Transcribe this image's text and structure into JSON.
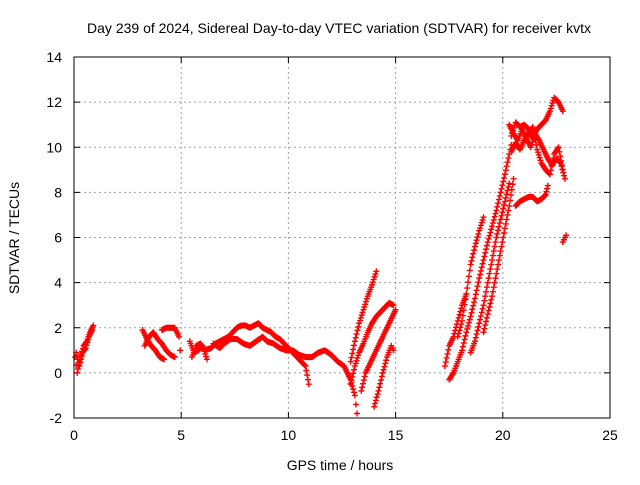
{
  "chart_data": {
    "type": "scatter",
    "title": "Day 239 of 2024, Sidereal Day-to-day VTEC variation (SDTVAR) for receiver kvtx",
    "xlabel": "GPS time / hours",
    "ylabel": "SDTVAR / TECUs",
    "xlim": [
      0,
      25
    ],
    "ylim": [
      -2,
      14
    ],
    "xticks": [
      0,
      5,
      10,
      15,
      20,
      25
    ],
    "yticks": [
      -2,
      0,
      2,
      4,
      6,
      8,
      10,
      12,
      14
    ],
    "grid": true,
    "marker_color": "#ff0000",
    "marker": "plus",
    "series": [
      {
        "segments": [
          [
            [
              0.05,
              0.7
            ],
            [
              0.15,
              0.0
            ],
            [
              0.3,
              0.7
            ],
            [
              0.45,
              1.2
            ],
            [
              0.6,
              1.4
            ],
            [
              0.75,
              1.8
            ],
            [
              0.9,
              2.1
            ]
          ],
          [
            [
              0.1,
              0.9
            ],
            [
              0.25,
              0.3
            ],
            [
              0.4,
              0.9
            ],
            [
              0.55,
              1.1
            ],
            [
              0.7,
              1.6
            ],
            [
              0.85,
              1.9
            ]
          ],
          [
            [
              3.2,
              1.9
            ],
            [
              3.4,
              1.5
            ],
            [
              3.6,
              1.2
            ],
            [
              3.8,
              1.0
            ],
            [
              4.0,
              0.7
            ],
            [
              4.2,
              0.6
            ]
          ],
          [
            [
              3.3,
              1.2
            ],
            [
              3.5,
              1.6
            ],
            [
              3.7,
              1.8
            ],
            [
              3.9,
              1.5
            ],
            [
              4.1,
              1.3
            ],
            [
              4.3,
              1.0
            ],
            [
              4.5,
              0.8
            ],
            [
              4.7,
              0.7
            ]
          ],
          [
            [
              4.1,
              1.9
            ],
            [
              4.3,
              2.0
            ],
            [
              4.5,
              2.0
            ],
            [
              4.7,
              2.0
            ],
            [
              4.9,
              1.6
            ],
            [
              4.95,
              1.0
            ]
          ],
          [
            [
              5.4,
              1.4
            ],
            [
              5.6,
              0.9
            ],
            [
              5.8,
              1.0
            ],
            [
              6.0,
              1.2
            ],
            [
              6.2,
              0.6
            ]
          ],
          [
            [
              5.5,
              0.7
            ],
            [
              5.7,
              1.2
            ],
            [
              5.9,
              1.3
            ],
            [
              6.1,
              1.0
            ],
            [
              6.4,
              1.1
            ],
            [
              6.6,
              1.3
            ],
            [
              6.8,
              1.4
            ],
            [
              7.0,
              1.5
            ],
            [
              7.2,
              1.6
            ],
            [
              7.4,
              1.8
            ],
            [
              7.6,
              2.0
            ],
            [
              7.8,
              2.1
            ],
            [
              8.0,
              2.1
            ],
            [
              8.2,
              2.0
            ],
            [
              8.4,
              2.1
            ],
            [
              8.6,
              2.2
            ],
            [
              8.8,
              2.0
            ],
            [
              9.0,
              1.9
            ],
            [
              9.2,
              1.8
            ],
            [
              9.4,
              1.6
            ],
            [
              9.6,
              1.5
            ],
            [
              9.8,
              1.3
            ],
            [
              10.0,
              1.1
            ],
            [
              10.2,
              0.9
            ],
            [
              10.4,
              0.7
            ],
            [
              10.6,
              0.5
            ],
            [
              10.8,
              0.3
            ],
            [
              10.95,
              -0.5
            ]
          ],
          [
            [
              6.5,
              1.3
            ],
            [
              6.8,
              1.1
            ],
            [
              7.0,
              1.3
            ],
            [
              7.3,
              1.5
            ],
            [
              7.6,
              1.5
            ],
            [
              7.9,
              1.3
            ],
            [
              8.2,
              1.2
            ],
            [
              8.5,
              1.4
            ],
            [
              8.8,
              1.6
            ],
            [
              9.0,
              1.4
            ],
            [
              9.3,
              1.3
            ],
            [
              9.6,
              1.1
            ],
            [
              9.9,
              1.0
            ],
            [
              10.2,
              1.0
            ],
            [
              10.5,
              0.8
            ],
            [
              10.8,
              0.7
            ],
            [
              11.1,
              0.7
            ],
            [
              11.4,
              0.9
            ],
            [
              11.7,
              1.0
            ],
            [
              12.0,
              0.8
            ],
            [
              12.3,
              0.5
            ],
            [
              12.6,
              0.3
            ],
            [
              12.9,
              -0.3
            ],
            [
              13.1,
              -1.0
            ],
            [
              13.2,
              -1.8
            ]
          ],
          [
            [
              12.9,
              0.5
            ],
            [
              13.1,
              1.4
            ],
            [
              13.3,
              2.2
            ],
            [
              13.5,
              2.8
            ],
            [
              13.7,
              3.4
            ],
            [
              13.9,
              3.9
            ],
            [
              14.1,
              4.5
            ]
          ],
          [
            [
              12.9,
              -0.5
            ],
            [
              13.1,
              0.3
            ],
            [
              13.3,
              0.9
            ],
            [
              13.5,
              1.3
            ],
            [
              13.7,
              1.8
            ],
            [
              13.9,
              2.2
            ],
            [
              14.1,
              2.5
            ],
            [
              14.3,
              2.7
            ],
            [
              14.5,
              2.9
            ],
            [
              14.7,
              3.1
            ],
            [
              14.9,
              3.0
            ]
          ],
          [
            [
              13.4,
              -0.8
            ],
            [
              13.6,
              0.0
            ],
            [
              13.8,
              0.4
            ],
            [
              14.0,
              0.8
            ],
            [
              14.2,
              1.2
            ],
            [
              14.4,
              1.6
            ],
            [
              14.6,
              2.0
            ],
            [
              14.8,
              2.4
            ],
            [
              15.0,
              2.8
            ]
          ],
          [
            [
              14.0,
              -1.5
            ],
            [
              14.2,
              -0.8
            ],
            [
              14.4,
              0.0
            ],
            [
              14.6,
              0.7
            ],
            [
              14.8,
              1.2
            ],
            [
              14.9,
              1.0
            ]
          ],
          [
            [
              17.3,
              0.3
            ],
            [
              17.5,
              1.2
            ],
            [
              17.7,
              1.6
            ],
            [
              17.9,
              2.3
            ],
            [
              18.1,
              3.0
            ],
            [
              18.3,
              3.5
            ]
          ],
          [
            [
              17.5,
              -0.3
            ],
            [
              17.7,
              0.0
            ],
            [
              17.9,
              0.5
            ],
            [
              18.1,
              1.0
            ],
            [
              18.3,
              1.8
            ],
            [
              18.5,
              2.5
            ],
            [
              18.7,
              3.3
            ],
            [
              18.9,
              4.2
            ],
            [
              19.1,
              5.0
            ],
            [
              19.3,
              5.8
            ],
            [
              19.5,
              6.5
            ],
            [
              19.7,
              7.2
            ],
            [
              19.9,
              8.0
            ],
            [
              20.1,
              8.8
            ],
            [
              20.3,
              9.7
            ],
            [
              20.4,
              10.1
            ]
          ],
          [
            [
              17.9,
              1.6
            ],
            [
              18.1,
              2.3
            ],
            [
              18.3,
              3.5
            ],
            [
              18.5,
              4.8
            ],
            [
              18.7,
              5.6
            ],
            [
              18.9,
              6.3
            ],
            [
              19.1,
              6.9
            ]
          ],
          [
            [
              18.5,
              0.9
            ],
            [
              18.7,
              1.4
            ],
            [
              18.9,
              2.2
            ],
            [
              19.1,
              3.0
            ],
            [
              19.3,
              4.0
            ],
            [
              19.5,
              5.0
            ],
            [
              19.7,
              6.0
            ],
            [
              19.9,
              6.8
            ],
            [
              20.1,
              7.6
            ],
            [
              20.3,
              8.4
            ]
          ],
          [
            [
              19.1,
              1.8
            ],
            [
              19.3,
              2.6
            ],
            [
              19.5,
              3.4
            ],
            [
              19.7,
              4.4
            ],
            [
              19.9,
              5.4
            ],
            [
              20.1,
              6.4
            ],
            [
              20.3,
              7.4
            ],
            [
              20.5,
              8.6
            ]
          ],
          [
            [
              20.3,
              11.0
            ],
            [
              20.5,
              10.6
            ],
            [
              20.7,
              10.3
            ],
            [
              20.9,
              10.8
            ],
            [
              21.1,
              10.4
            ],
            [
              21.3,
              10.0
            ],
            [
              21.5,
              10.6
            ],
            [
              21.7,
              10.3
            ],
            [
              21.9,
              9.9
            ],
            [
              22.1,
              9.5
            ],
            [
              22.3,
              9.2
            ],
            [
              22.5,
              9.5
            ],
            [
              22.7,
              9.3
            ],
            [
              22.9,
              8.6
            ]
          ],
          [
            [
              20.4,
              10.5
            ],
            [
              20.6,
              11.1
            ],
            [
              20.8,
              10.9
            ],
            [
              21.0,
              11.0
            ],
            [
              21.2,
              10.8
            ],
            [
              21.4,
              10.4
            ],
            [
              21.6,
              10.8
            ],
            [
              21.8,
              11.0
            ],
            [
              22.0,
              11.2
            ],
            [
              22.2,
              11.6
            ],
            [
              22.4,
              12.2
            ],
            [
              22.6,
              12.0
            ],
            [
              22.8,
              11.6
            ]
          ],
          [
            [
              20.4,
              9.8
            ],
            [
              20.6,
              10.2
            ],
            [
              20.8,
              9.9
            ],
            [
              21.0,
              10.3
            ],
            [
              21.2,
              10.6
            ],
            [
              21.4,
              10.9
            ],
            [
              21.6,
              9.9
            ],
            [
              21.8,
              9.3
            ],
            [
              22.0,
              9.0
            ],
            [
              22.2,
              8.8
            ],
            [
              22.4,
              9.7
            ],
            [
              22.6,
              10.0
            ],
            [
              22.8,
              9.0
            ]
          ],
          [
            [
              20.6,
              7.4
            ],
            [
              20.8,
              7.6
            ],
            [
              21.0,
              7.7
            ],
            [
              21.2,
              7.8
            ],
            [
              21.4,
              7.8
            ],
            [
              21.6,
              7.6
            ],
            [
              21.8,
              7.7
            ],
            [
              22.0,
              7.9
            ],
            [
              22.1,
              8.3
            ]
          ],
          [
            [
              22.8,
              5.8
            ],
            [
              22.9,
              6.0
            ],
            [
              22.95,
              6.1
            ]
          ]
        ]
      }
    ]
  }
}
